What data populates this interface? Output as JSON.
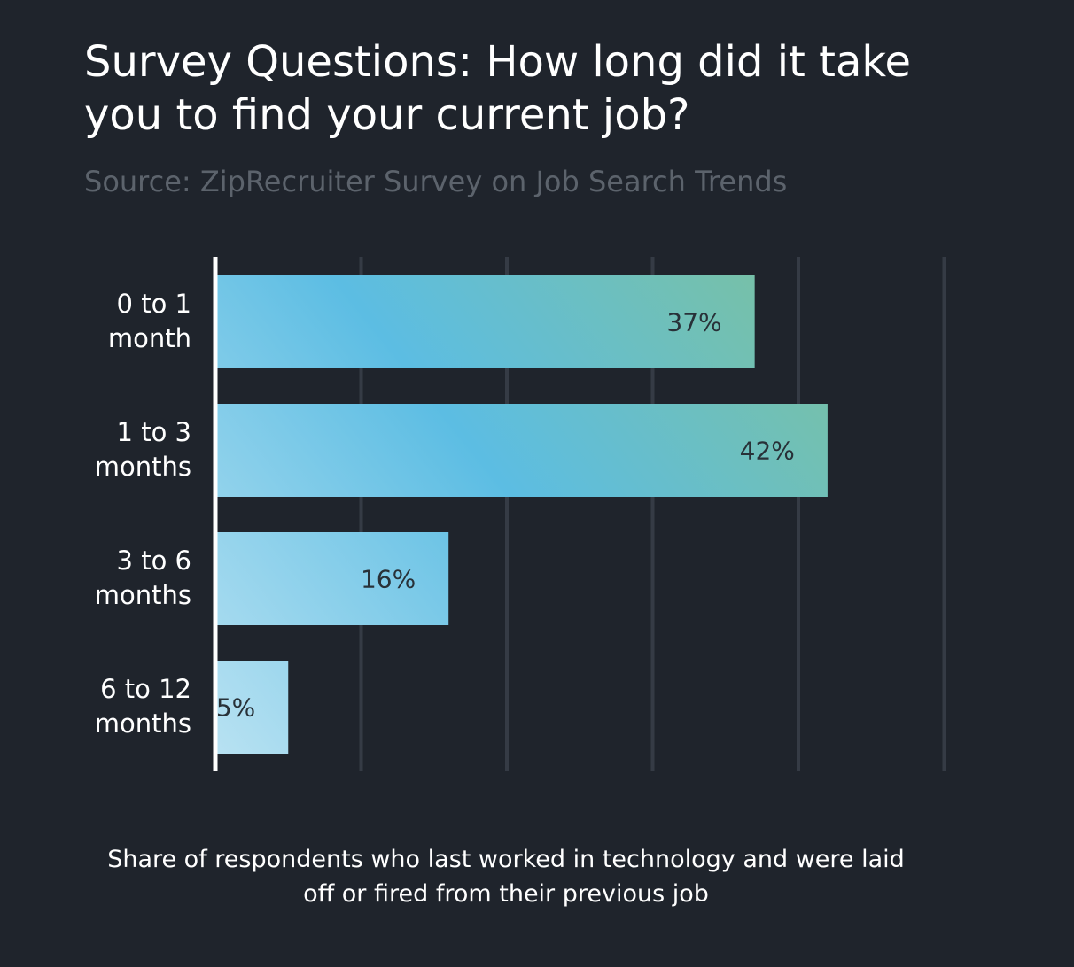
{
  "title": "Survey Questions: How long did it take you to find your current job?",
  "subtitle": "Source: ZipRecruiter Survey on Job Search Trends",
  "chart_data": {
    "type": "bar",
    "orientation": "horizontal",
    "categories": [
      [
        "0 to 1",
        "month"
      ],
      [
        "1 to 3",
        "months"
      ],
      [
        "3 to 6",
        "months"
      ],
      [
        "6 to 12",
        "months"
      ]
    ],
    "values": [
      37,
      42,
      16,
      5
    ],
    "value_labels": [
      "37%",
      "42%",
      "16%",
      "5%"
    ],
    "unit": "%",
    "xlim": [
      0,
      50
    ],
    "xlabel": "Share of respondents who last worked in technology and were laid off or fired from their previous job",
    "ylabel": "",
    "grid": "vertical",
    "legend": "none"
  },
  "colors": {
    "background": "#1f242c",
    "gridline": "#353b45",
    "axis": "#ffffff",
    "bar_gradient": [
      "#b9e2f2",
      "#5cbde3",
      "#7cc19d"
    ],
    "value_label": "#283138",
    "text": "#ffffff",
    "subtitle": "#5c636c"
  }
}
